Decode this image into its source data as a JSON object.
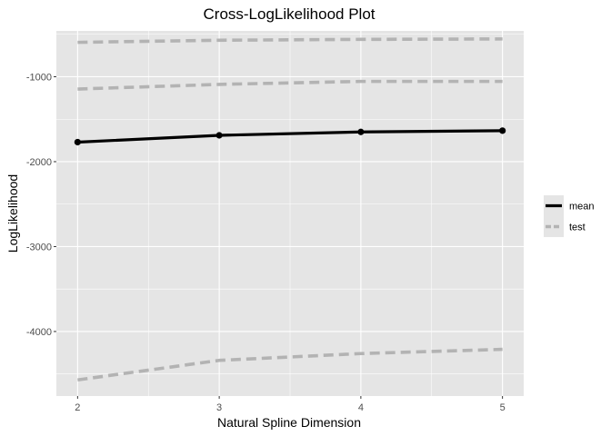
{
  "chart_data": {
    "type": "line",
    "title": "Cross-LogLikelihood Plot",
    "xlabel": "Natural Spline Dimension",
    "ylabel": "LogLikelihood",
    "x": [
      2,
      3,
      4,
      5
    ],
    "xlim": [
      1.85,
      5.15
    ],
    "ylim": [
      -4760,
      -460
    ],
    "xticks": [
      2,
      3,
      4,
      5
    ],
    "yticks": [
      -4000,
      -3000,
      -2000,
      -1000
    ],
    "grid": true,
    "panel_background": "#e5e5e5",
    "grid_color": "#ffffff",
    "legend": {
      "position": "right",
      "entries": [
        "mean",
        "test"
      ]
    },
    "series": [
      {
        "name": "mean",
        "style": "solid",
        "color": "#000000",
        "markers": true,
        "values": [
          -1770,
          -1690,
          -1650,
          -1635
        ]
      },
      {
        "name": "test",
        "style": "dashed",
        "color": "#b3b3b3",
        "values": [
          -595,
          -570,
          -560,
          -555
        ]
      },
      {
        "name": "test",
        "style": "dashed",
        "color": "#b3b3b3",
        "values": [
          -1145,
          -1090,
          -1055,
          -1055
        ]
      },
      {
        "name": "test",
        "style": "dashed",
        "color": "#b3b3b3",
        "values": [
          -4570,
          -4340,
          -4260,
          -4210
        ]
      }
    ]
  }
}
